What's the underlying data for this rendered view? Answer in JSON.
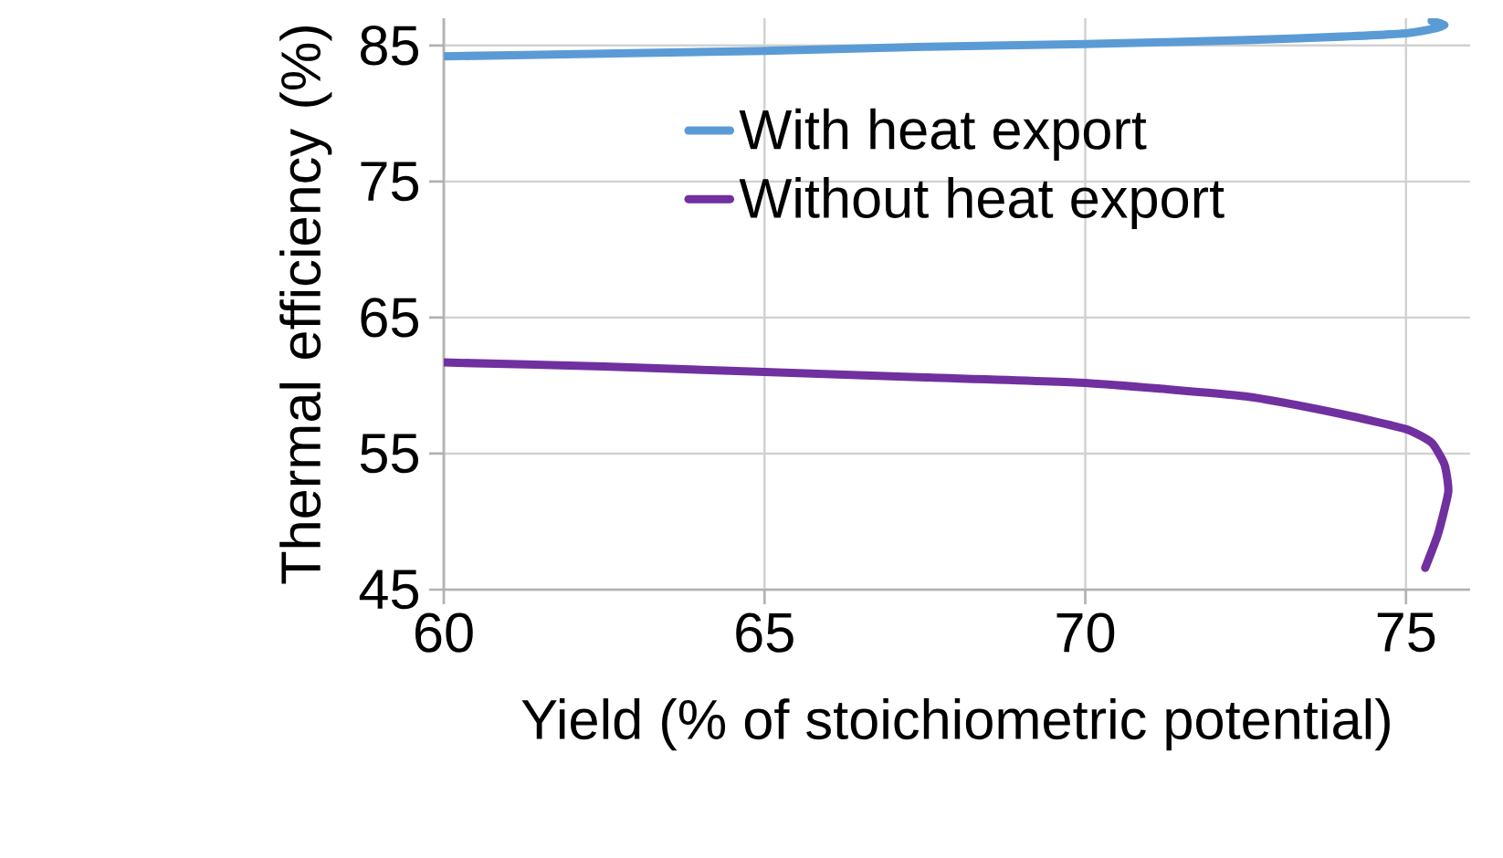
{
  "chart_data": {
    "type": "line",
    "xlabel": "Yield (% of stoichiometric potential)",
    "ylabel": "Thermal efficiency (%)",
    "xlim": [
      60,
      76
    ],
    "xticks": [
      60,
      65,
      70,
      75
    ],
    "ylim": [
      45,
      87
    ],
    "yticks": [
      45,
      55,
      65,
      75,
      85
    ],
    "grid": true,
    "legend": "top",
    "line_style": "solid",
    "series": [
      {
        "name": "With heat export",
        "color": "#5b9bd5",
        "x": [
          60,
          62.5,
          65,
          67.5,
          70,
          72.5,
          74,
          75,
          75.4,
          75.6,
          75.4
        ],
        "values": [
          84.2,
          84.4,
          84.6,
          84.9,
          85.1,
          85.4,
          85.65,
          85.9,
          86.2,
          86.5,
          86.8
        ]
      },
      {
        "name": "Without heat export",
        "color": "#7030a0",
        "x": [
          60,
          62.5,
          65,
          67.5,
          70,
          72.5,
          74,
          75,
          75.4,
          75.6,
          75.66,
          75.5,
          75.3
        ],
        "values": [
          61.7,
          61.4,
          61.0,
          60.6,
          60.2,
          59.2,
          57.9,
          56.8,
          55.8,
          54.2,
          52.2,
          49.1,
          46.6
        ]
      }
    ]
  }
}
